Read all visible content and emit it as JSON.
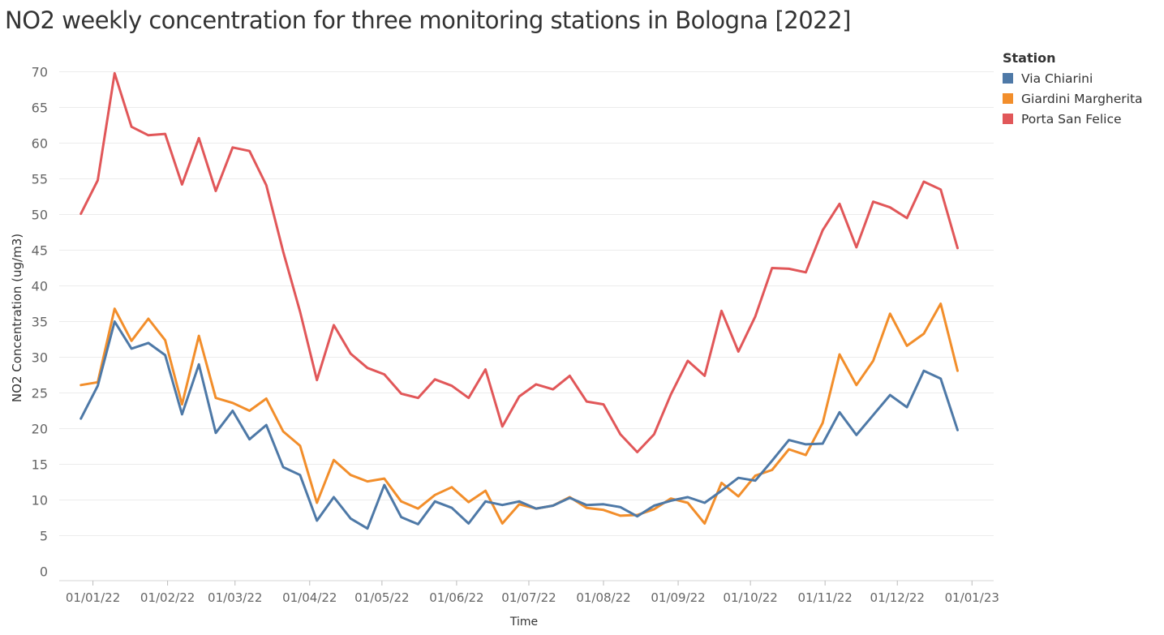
{
  "chart_data": {
    "type": "line",
    "title": "NO2 weekly concentration for three monitoring stations in Bologna [2022]",
    "xlabel": "Time",
    "ylabel": "NO2 Concentration (ug/m3)",
    "ylim": [
      0,
      73
    ],
    "y_ticks": [
      0,
      5,
      10,
      15,
      20,
      25,
      30,
      35,
      40,
      45,
      50,
      55,
      60,
      65,
      70
    ],
    "x_range": [
      "2021-12-18",
      "2023-01-10"
    ],
    "x_ticks": [
      {
        "date": "2022-01-01",
        "label": "01/01/22"
      },
      {
        "date": "2022-02-01",
        "label": "01/02/22"
      },
      {
        "date": "2022-03-01",
        "label": "01/03/22"
      },
      {
        "date": "2022-04-01",
        "label": "01/04/22"
      },
      {
        "date": "2022-05-01",
        "label": "01/05/22"
      },
      {
        "date": "2022-06-01",
        "label": "01/06/22"
      },
      {
        "date": "2022-07-01",
        "label": "01/07/22"
      },
      {
        "date": "2022-08-01",
        "label": "01/08/22"
      },
      {
        "date": "2022-09-01",
        "label": "01/09/22"
      },
      {
        "date": "2022-10-01",
        "label": "01/10/22"
      },
      {
        "date": "2022-11-01",
        "label": "01/11/22"
      },
      {
        "date": "2022-12-01",
        "label": "01/12/22"
      },
      {
        "date": "2023-01-01",
        "label": "01/01/23"
      }
    ],
    "x": [
      "2021-12-27",
      "2022-01-03",
      "2022-01-10",
      "2022-01-17",
      "2022-01-24",
      "2022-01-31",
      "2022-02-07",
      "2022-02-14",
      "2022-02-21",
      "2022-02-28",
      "2022-03-07",
      "2022-03-14",
      "2022-03-21",
      "2022-03-28",
      "2022-04-04",
      "2022-04-11",
      "2022-04-18",
      "2022-04-25",
      "2022-05-02",
      "2022-05-09",
      "2022-05-16",
      "2022-05-23",
      "2022-05-30",
      "2022-06-06",
      "2022-06-13",
      "2022-06-20",
      "2022-06-27",
      "2022-07-04",
      "2022-07-11",
      "2022-07-18",
      "2022-07-25",
      "2022-08-01",
      "2022-08-08",
      "2022-08-15",
      "2022-08-22",
      "2022-08-29",
      "2022-09-05",
      "2022-09-12",
      "2022-09-19",
      "2022-09-26",
      "2022-10-03",
      "2022-10-10",
      "2022-10-17",
      "2022-10-24",
      "2022-10-31",
      "2022-11-07",
      "2022-11-14",
      "2022-11-21",
      "2022-11-28",
      "2022-12-05",
      "2022-12-12",
      "2022-12-19",
      "2022-12-26"
    ],
    "legend_title": "Station",
    "legend_position": "top-right",
    "grid": true,
    "series": [
      {
        "name": "Via Chiarini",
        "color": "#4e79a7",
        "values": [
          21.4,
          26.0,
          35.0,
          31.2,
          32.0,
          30.3,
          22.0,
          29.0,
          19.4,
          22.5,
          18.5,
          20.5,
          14.6,
          13.5,
          7.1,
          10.4,
          7.4,
          6.0,
          12.1,
          7.6,
          6.6,
          9.8,
          8.9,
          6.7,
          9.8,
          9.3,
          9.8,
          8.8,
          9.2,
          10.3,
          9.3,
          9.4,
          9.0,
          7.7,
          9.2,
          9.9,
          10.4,
          9.6,
          11.3,
          13.1,
          12.7,
          15.5,
          18.4,
          17.8,
          17.9,
          22.3,
          19.1,
          21.9,
          24.7,
          23.0,
          28.1,
          27.0,
          19.8
        ]
      },
      {
        "name": "Giardini Margherita",
        "color": "#f28e2b",
        "values": [
          26.1,
          26.5,
          36.8,
          32.3,
          35.4,
          32.4,
          23.4,
          33.0,
          24.3,
          23.6,
          22.5,
          24.2,
          19.6,
          17.6,
          9.6,
          15.6,
          13.5,
          12.6,
          13.0,
          9.8,
          8.8,
          10.7,
          11.8,
          9.7,
          11.3,
          6.7,
          9.4,
          8.8,
          9.2,
          10.4,
          8.9,
          8.6,
          7.8,
          7.9,
          8.7,
          10.2,
          9.6,
          6.7,
          12.4,
          10.5,
          13.4,
          14.2,
          17.1,
          16.3,
          20.8,
          30.4,
          26.1,
          29.5,
          36.1,
          31.6,
          33.3,
          37.5,
          28.1
        ]
      },
      {
        "name": "Porta San Felice",
        "color": "#e15759",
        "values": [
          50.1,
          54.8,
          69.8,
          62.3,
          61.1,
          61.3,
          54.2,
          60.7,
          53.3,
          59.4,
          58.9,
          54.1,
          44.8,
          36.4,
          26.8,
          34.5,
          30.5,
          28.5,
          27.6,
          24.9,
          24.3,
          26.9,
          26.0,
          24.3,
          28.3,
          20.3,
          24.5,
          26.2,
          25.5,
          27.4,
          23.8,
          23.4,
          19.2,
          16.7,
          19.2,
          24.8,
          29.5,
          27.4,
          36.5,
          30.8,
          35.7,
          42.5,
          42.4,
          41.9,
          47.8,
          51.5,
          45.4,
          51.8,
          51.0,
          49.5,
          54.6,
          53.5,
          45.3
        ]
      }
    ]
  }
}
